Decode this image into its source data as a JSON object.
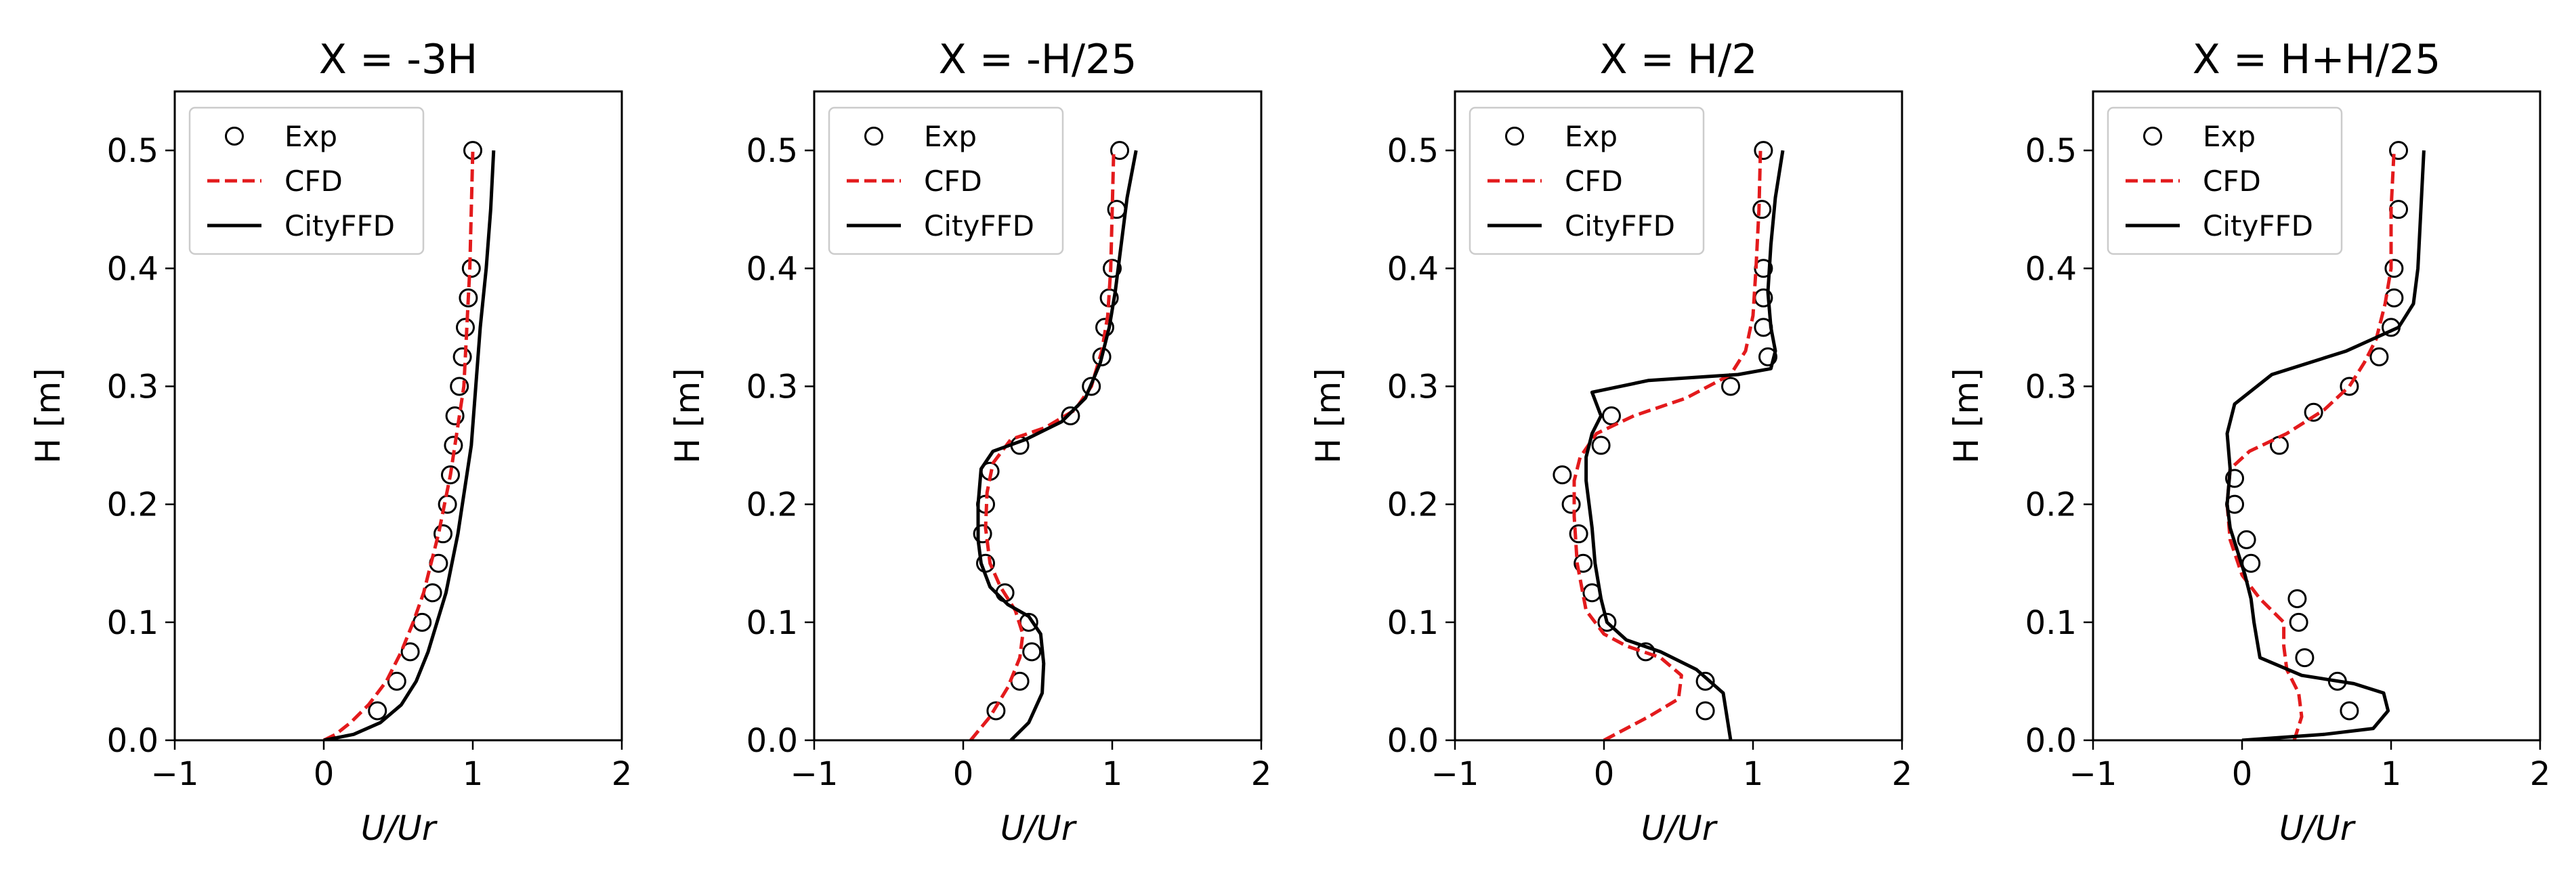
{
  "colors": {
    "exp_marker": "#000000",
    "cfd_line": "#e31a1c",
    "cityffd_line": "#000000",
    "background": "#ffffff"
  },
  "chart_data": [
    {
      "type": "line",
      "title": "X = -3H",
      "xlabel": "U/Ur",
      "ylabel": "H [m]",
      "xlim": [
        -1,
        2
      ],
      "ylim": [
        0,
        0.55
      ],
      "xticks": [
        "−1",
        "0",
        "1",
        "2"
      ],
      "yticks": [
        "0.0",
        "0.1",
        "0.2",
        "0.3",
        "0.4",
        "0.5"
      ],
      "legend": {
        "location": "top-left",
        "entries": [
          "Exp",
          "CFD",
          "CityFFD"
        ]
      },
      "series": [
        {
          "name": "Exp",
          "style": "open-circle",
          "x": [
            0.36,
            0.49,
            0.58,
            0.66,
            0.73,
            0.77,
            0.8,
            0.83,
            0.85,
            0.87,
            0.88,
            0.91,
            0.93,
            0.95,
            0.97,
            0.99,
            1.0
          ],
          "y": [
            0.025,
            0.05,
            0.075,
            0.1,
            0.125,
            0.15,
            0.175,
            0.2,
            0.225,
            0.25,
            0.275,
            0.3,
            0.325,
            0.35,
            0.375,
            0.4,
            0.5
          ]
        },
        {
          "name": "CFD",
          "style": "dashed",
          "x": [
            0.0,
            0.08,
            0.18,
            0.3,
            0.42,
            0.52,
            0.6,
            0.67,
            0.72,
            0.77,
            0.81,
            0.85,
            0.88,
            0.91,
            0.94,
            0.96,
            0.98,
            0.99,
            1.0
          ],
          "y": [
            0.0,
            0.005,
            0.015,
            0.03,
            0.05,
            0.075,
            0.1,
            0.125,
            0.15,
            0.175,
            0.2,
            0.225,
            0.25,
            0.275,
            0.3,
            0.35,
            0.4,
            0.45,
            0.5
          ]
        },
        {
          "name": "CityFFD",
          "style": "solid",
          "x": [
            0.0,
            0.2,
            0.38,
            0.52,
            0.62,
            0.7,
            0.76,
            0.82,
            0.86,
            0.9,
            0.93,
            0.96,
            0.99,
            1.02,
            1.05,
            1.09,
            1.12,
            1.14
          ],
          "y": [
            0.0,
            0.005,
            0.015,
            0.03,
            0.05,
            0.075,
            0.1,
            0.125,
            0.15,
            0.175,
            0.2,
            0.225,
            0.25,
            0.3,
            0.35,
            0.4,
            0.45,
            0.5
          ]
        }
      ]
    },
    {
      "type": "line",
      "title": "X = -H/25",
      "xlabel": "U/Ur",
      "ylabel": "H [m]",
      "xlim": [
        -1,
        2
      ],
      "ylim": [
        0,
        0.55
      ],
      "xticks": [
        "−1",
        "0",
        "1",
        "2"
      ],
      "yticks": [
        "0.0",
        "0.1",
        "0.2",
        "0.3",
        "0.4",
        "0.5"
      ],
      "legend": {
        "location": "top-left",
        "entries": [
          "Exp",
          "CFD",
          "CityFFD"
        ]
      },
      "series": [
        {
          "name": "Exp",
          "style": "open-circle",
          "x": [
            0.22,
            0.38,
            0.46,
            0.44,
            0.28,
            0.15,
            0.13,
            0.15,
            0.18,
            0.38,
            0.72,
            0.86,
            0.93,
            0.95,
            0.98,
            1.0,
            1.03,
            1.05
          ],
          "y": [
            0.025,
            0.05,
            0.075,
            0.1,
            0.125,
            0.15,
            0.175,
            0.2,
            0.228,
            0.25,
            0.275,
            0.3,
            0.325,
            0.35,
            0.375,
            0.4,
            0.45,
            0.5
          ]
        },
        {
          "name": "CFD",
          "style": "dashed",
          "x": [
            0.05,
            0.18,
            0.3,
            0.38,
            0.4,
            0.35,
            0.25,
            0.18,
            0.15,
            0.16,
            0.2,
            0.32,
            0.55,
            0.75,
            0.86,
            0.93,
            0.97,
            0.99,
            1.0,
            1.01
          ],
          "y": [
            0.0,
            0.02,
            0.045,
            0.07,
            0.09,
            0.11,
            0.13,
            0.15,
            0.18,
            0.21,
            0.235,
            0.255,
            0.265,
            0.28,
            0.3,
            0.33,
            0.36,
            0.4,
            0.45,
            0.5
          ]
        },
        {
          "name": "CityFFD",
          "style": "solid",
          "x": [
            0.32,
            0.44,
            0.53,
            0.54,
            0.52,
            0.44,
            0.3,
            0.18,
            0.12,
            0.1,
            0.1,
            0.12,
            0.2,
            0.42,
            0.66,
            0.82,
            0.92,
            0.98,
            1.02,
            1.06,
            1.1,
            1.16
          ],
          "y": [
            0.0,
            0.015,
            0.04,
            0.065,
            0.09,
            0.105,
            0.115,
            0.13,
            0.15,
            0.17,
            0.2,
            0.23,
            0.245,
            0.255,
            0.27,
            0.29,
            0.32,
            0.35,
            0.38,
            0.42,
            0.46,
            0.5
          ]
        }
      ]
    },
    {
      "type": "line",
      "title": "X = H/2",
      "xlabel": "U/Ur",
      "ylabel": "H [m]",
      "xlim": [
        -1,
        2
      ],
      "ylim": [
        0,
        0.55
      ],
      "xticks": [
        "−1",
        "0",
        "1",
        "2"
      ],
      "yticks": [
        "0.0",
        "0.1",
        "0.2",
        "0.3",
        "0.4",
        "0.5"
      ],
      "legend": {
        "location": "top-left",
        "entries": [
          "Exp",
          "CFD",
          "CityFFD"
        ]
      },
      "series": [
        {
          "name": "Exp",
          "style": "open-circle",
          "x": [
            0.68,
            0.68,
            0.28,
            0.02,
            -0.08,
            -0.14,
            -0.17,
            -0.22,
            -0.28,
            -0.02,
            0.05,
            0.85,
            1.1,
            1.07,
            1.07,
            1.07,
            1.06,
            1.07
          ],
          "y": [
            0.025,
            0.05,
            0.075,
            0.1,
            0.125,
            0.15,
            0.175,
            0.2,
            0.225,
            0.25,
            0.275,
            0.3,
            0.325,
            0.35,
            0.375,
            0.4,
            0.45,
            0.5
          ]
        },
        {
          "name": "CFD",
          "style": "dashed",
          "x": [
            0.0,
            0.3,
            0.5,
            0.52,
            0.38,
            0.15,
            0.0,
            -0.12,
            -0.18,
            -0.2,
            -0.2,
            -0.16,
            -0.05,
            0.2,
            0.55,
            0.85,
            0.95,
            1.0,
            1.02,
            1.04,
            1.05
          ],
          "y": [
            0.0,
            0.02,
            0.035,
            0.055,
            0.07,
            0.08,
            0.09,
            0.11,
            0.15,
            0.19,
            0.22,
            0.24,
            0.26,
            0.275,
            0.29,
            0.31,
            0.33,
            0.36,
            0.4,
            0.45,
            0.5
          ]
        },
        {
          "name": "CityFFD",
          "style": "solid",
          "x": [
            0.85,
            0.8,
            0.62,
            0.38,
            0.15,
            0.02,
            -0.02,
            -0.06,
            -0.08,
            -0.1,
            -0.12,
            -0.12,
            -0.08,
            -0.02,
            -0.05,
            -0.08,
            0.3,
            0.9,
            1.12,
            1.15,
            1.12,
            1.1,
            1.12,
            1.15,
            1.2
          ],
          "y": [
            0.0,
            0.04,
            0.06,
            0.075,
            0.085,
            0.1,
            0.12,
            0.15,
            0.18,
            0.2,
            0.22,
            0.24,
            0.26,
            0.275,
            0.285,
            0.295,
            0.305,
            0.31,
            0.315,
            0.33,
            0.35,
            0.38,
            0.42,
            0.46,
            0.5
          ]
        }
      ]
    },
    {
      "type": "line",
      "title": "X = H+H/25",
      "xlabel": "U/Ur",
      "ylabel": "H [m]",
      "xlim": [
        -1,
        2
      ],
      "ylim": [
        0,
        0.55
      ],
      "xticks": [
        "−1",
        "0",
        "1",
        "2"
      ],
      "yticks": [
        "0.0",
        "0.1",
        "0.2",
        "0.3",
        "0.4",
        "0.5"
      ],
      "legend": {
        "location": "top-left",
        "entries": [
          "Exp",
          "CFD",
          "CityFFD"
        ]
      },
      "series": [
        {
          "name": "Exp",
          "style": "open-circle",
          "x": [
            0.72,
            0.64,
            0.42,
            0.38,
            0.37,
            0.06,
            0.03,
            -0.05,
            -0.05,
            0.25,
            0.48,
            0.72,
            0.92,
            1.0,
            1.02,
            1.02,
            1.05,
            1.05
          ],
          "y": [
            0.025,
            0.05,
            0.07,
            0.1,
            0.12,
            0.15,
            0.17,
            0.2,
            0.222,
            0.25,
            0.278,
            0.3,
            0.325,
            0.35,
            0.375,
            0.4,
            0.45,
            0.5
          ]
        },
        {
          "name": "CFD",
          "style": "dashed",
          "x": [
            0.35,
            0.4,
            0.38,
            0.3,
            0.28,
            0.28,
            0.12,
            0.0,
            -0.08,
            -0.1,
            -0.08,
            0.05,
            0.3,
            0.55,
            0.72,
            0.82,
            0.9,
            0.96,
            1.0,
            1.0,
            1.02
          ],
          "y": [
            0.0,
            0.02,
            0.04,
            0.06,
            0.08,
            0.1,
            0.12,
            0.14,
            0.17,
            0.2,
            0.23,
            0.245,
            0.26,
            0.28,
            0.3,
            0.32,
            0.34,
            0.37,
            0.4,
            0.45,
            0.5
          ]
        },
        {
          "name": "CityFFD",
          "style": "solid",
          "x": [
            0.0,
            0.55,
            0.88,
            0.98,
            0.95,
            0.75,
            0.4,
            0.12,
            0.08,
            0.06,
            0.02,
            -0.03,
            -0.08,
            -0.1,
            -0.08,
            -0.1,
            -0.05,
            0.2,
            0.7,
            1.05,
            1.15,
            1.18,
            1.2,
            1.22
          ],
          "y": [
            0.0,
            0.005,
            0.01,
            0.025,
            0.04,
            0.048,
            0.055,
            0.07,
            0.1,
            0.12,
            0.14,
            0.16,
            0.18,
            0.2,
            0.23,
            0.26,
            0.285,
            0.31,
            0.33,
            0.35,
            0.37,
            0.4,
            0.45,
            0.5
          ]
        }
      ]
    }
  ]
}
